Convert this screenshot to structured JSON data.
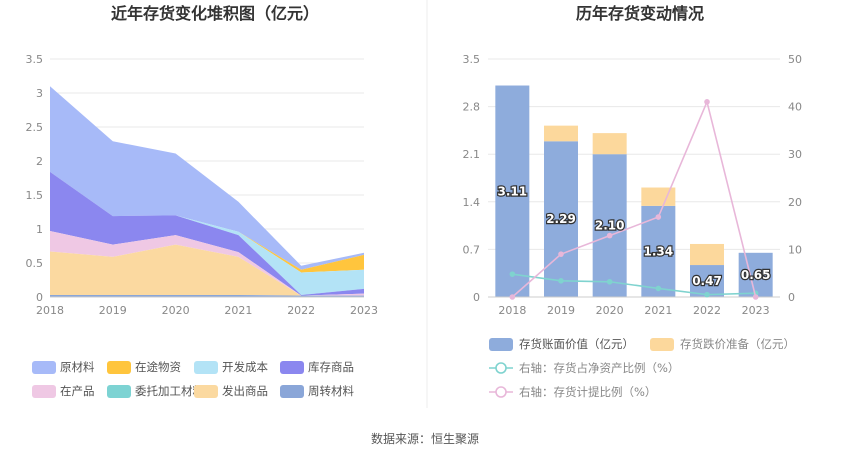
{
  "left_title": "近年存货变化堆积图（亿元）",
  "right_title": "历年存货变动情况",
  "source": "数据来源：恒生聚源",
  "chart_data": [
    {
      "type": "area",
      "title": "近年存货变化堆积图（亿元）",
      "categories": [
        "2018",
        "2019",
        "2020",
        "2021",
        "2022",
        "2023"
      ],
      "ylim": [
        0,
        3.5
      ],
      "yticks": [
        "0",
        "0.5",
        "1",
        "1.5",
        "2",
        "2.5",
        "3",
        "3.5"
      ],
      "grid": true,
      "legend_position": "bottom",
      "series": [
        {
          "name": "周转材料",
          "color": "#8aa6d8",
          "values": [
            0.03,
            0.03,
            0.03,
            0.03,
            0.02,
            0.02
          ]
        },
        {
          "name": "发出商品",
          "color": "#fbd9a0",
          "values": [
            0.64,
            0.56,
            0.74,
            0.56,
            0.0,
            0.0
          ]
        },
        {
          "name": "委托加工材料",
          "color": "#7dd3d3",
          "values": [
            0.0,
            0.0,
            0.0,
            0.0,
            0.0,
            0.0
          ]
        },
        {
          "name": "在产品",
          "color": "#efc8e4",
          "values": [
            0.3,
            0.18,
            0.14,
            0.07,
            0.0,
            0.03
          ]
        },
        {
          "name": "库存商品",
          "color": "#8b87ef",
          "values": [
            0.87,
            0.42,
            0.29,
            0.25,
            0.01,
            0.07
          ]
        },
        {
          "name": "开发成本",
          "color": "#b3e3f6",
          "values": [
            0.0,
            0.0,
            0.0,
            0.05,
            0.33,
            0.28
          ]
        },
        {
          "name": "在途物资",
          "color": "#ffc53d",
          "values": [
            0.0,
            0.0,
            0.0,
            0.0,
            0.04,
            0.22
          ]
        },
        {
          "name": "原材料",
          "color": "#a7baf8",
          "values": [
            1.26,
            1.1,
            0.91,
            0.44,
            0.06,
            0.03
          ]
        }
      ],
      "legend_order": [
        "原材料",
        "在途物资",
        "开发成本",
        "库存商品",
        "在产品",
        "委托加工材料",
        "发出商品",
        "周转材料"
      ]
    },
    {
      "type": "bar",
      "title": "历年存货变动情况",
      "categories": [
        "2018",
        "2019",
        "2020",
        "2021",
        "2022",
        "2023"
      ],
      "ylim": [
        0,
        3.5
      ],
      "yticks": [
        "0",
        "0.7",
        "1.4",
        "2.1",
        "2.8",
        "3.5"
      ],
      "y2lim": [
        0,
        50
      ],
      "y2ticks": [
        "0",
        "10",
        "20",
        "30",
        "40",
        "50"
      ],
      "grid": true,
      "legend_position": "bottom",
      "series": [
        {
          "name": "存货账面价值（亿元）",
          "color": "#8eacdc",
          "kind": "bar",
          "values": [
            3.11,
            2.29,
            2.1,
            1.34,
            0.47,
            0.65
          ],
          "labels": [
            "3.11",
            "2.29",
            "2.10",
            "1.34",
            "0.47",
            "0.65"
          ]
        },
        {
          "name": "存货跌价准备（亿元）",
          "color": "#fcd89c",
          "kind": "bar",
          "values": [
            0.0,
            0.23,
            0.31,
            0.27,
            0.31,
            0.0
          ]
        },
        {
          "name": "右轴：存货占净资产比例（%）",
          "color": "#7fd3cf",
          "kind": "line",
          "axis": "right",
          "values": [
            4.8,
            3.4,
            3.2,
            1.8,
            0.5,
            0.8
          ]
        },
        {
          "name": "右轴：存货计提比例（%）",
          "color": "#e8b7d9",
          "kind": "line",
          "axis": "right",
          "values": [
            0.0,
            9.0,
            12.9,
            16.8,
            41.0,
            0.0
          ]
        }
      ]
    }
  ]
}
